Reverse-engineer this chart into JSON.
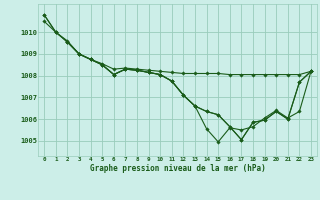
{
  "title": "Graphe pression niveau de la mer (hPa)",
  "background_color": "#cceee8",
  "grid_color": "#99ccbb",
  "line_color": "#1a5c1a",
  "xlim": [
    -0.5,
    23.5
  ],
  "ylim": [
    1004.3,
    1011.3
  ],
  "yticks": [
    1005,
    1006,
    1007,
    1008,
    1009,
    1010
  ],
  "xticks": [
    0,
    1,
    2,
    3,
    4,
    5,
    6,
    7,
    8,
    9,
    10,
    11,
    12,
    13,
    14,
    15,
    16,
    17,
    18,
    19,
    20,
    21,
    22,
    23
  ],
  "series": [
    {
      "x": [
        0,
        1,
        2,
        3,
        4,
        5,
        6,
        7,
        8,
        9,
        10,
        11,
        12,
        13,
        14,
        15,
        16,
        17,
        18,
        19,
        20,
        21,
        22,
        23
      ],
      "y": [
        1010.5,
        1010.0,
        1009.6,
        1009.0,
        1008.75,
        1008.55,
        1008.3,
        1008.35,
        1008.3,
        1008.25,
        1008.2,
        1008.15,
        1008.1,
        1008.1,
        1008.1,
        1008.1,
        1008.05,
        1008.05,
        1008.05,
        1008.05,
        1008.05,
        1008.05,
        1008.05,
        1008.2
      ]
    },
    {
      "x": [
        0,
        1,
        2,
        3,
        4,
        5,
        6,
        7,
        8,
        9,
        10,
        11,
        12,
        13,
        14,
        15,
        16,
        17,
        18,
        19,
        20,
        21,
        22,
        23
      ],
      "y": [
        1010.8,
        1010.0,
        1009.55,
        1009.0,
        1008.75,
        1008.5,
        1008.05,
        1008.3,
        1008.25,
        1008.15,
        1008.05,
        1007.75,
        1007.1,
        1006.6,
        1006.35,
        1006.2,
        1005.65,
        1005.05,
        1005.85,
        1005.95,
        1006.35,
        1006.0,
        1007.7,
        1008.2
      ]
    },
    {
      "x": [
        0,
        1,
        2,
        3,
        4,
        5,
        6,
        7,
        8,
        9,
        10,
        11,
        12,
        13,
        14,
        15,
        16,
        17,
        18,
        19,
        20,
        21,
        22,
        23
      ],
      "y": [
        1010.8,
        1010.0,
        1009.55,
        1009.0,
        1008.75,
        1008.5,
        1008.05,
        1008.3,
        1008.25,
        1008.15,
        1008.05,
        1007.75,
        1007.1,
        1006.6,
        1005.55,
        1004.95,
        1005.6,
        1005.5,
        1005.65,
        1006.05,
        1006.4,
        1006.05,
        1006.35,
        1008.2
      ]
    },
    {
      "x": [
        2,
        3,
        4,
        5,
        6,
        7,
        8,
        9,
        10,
        11,
        12,
        13,
        14,
        15,
        16,
        17,
        18,
        19,
        20,
        21,
        22,
        23
      ],
      "y": [
        1009.55,
        1009.0,
        1008.75,
        1008.5,
        1008.05,
        1008.3,
        1008.25,
        1008.15,
        1008.05,
        1007.75,
        1007.1,
        1006.6,
        1006.35,
        1006.2,
        1005.65,
        1005.05,
        1005.85,
        1005.95,
        1006.35,
        1006.0,
        1007.7,
        1008.2
      ]
    }
  ]
}
